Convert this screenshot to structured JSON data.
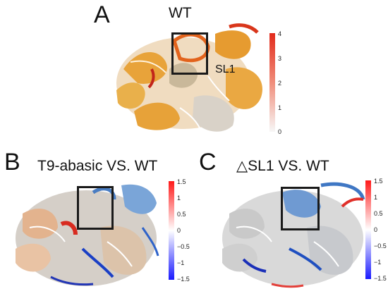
{
  "panels": [
    {
      "label": "A",
      "title": "WT",
      "annotation": "SL1",
      "colorbar": {
        "ticks": [
          "4",
          "3",
          "2",
          "1",
          "0"
        ],
        "colors": [
          "#e22a1b",
          "#f7f7f7"
        ]
      }
    },
    {
      "label": "B",
      "title": "T9-abasic VS. WT",
      "colorbar": {
        "ticks": [
          "1.5",
          "1",
          "0.5",
          "0",
          "−0.5",
          "−1",
          "−1.5"
        ],
        "colors": [
          "#ff1a1a",
          "#ffffff",
          "#1a1aff"
        ]
      }
    },
    {
      "label": "C",
      "title": "△SL1 VS. WT",
      "colorbar": {
        "ticks": [
          "1.5",
          "1",
          "0.5",
          "0",
          "−0.5",
          "−1",
          "−1.5"
        ],
        "colors": [
          "#ff1a1a",
          "#ffffff",
          "#1a1aff"
        ]
      }
    }
  ]
}
